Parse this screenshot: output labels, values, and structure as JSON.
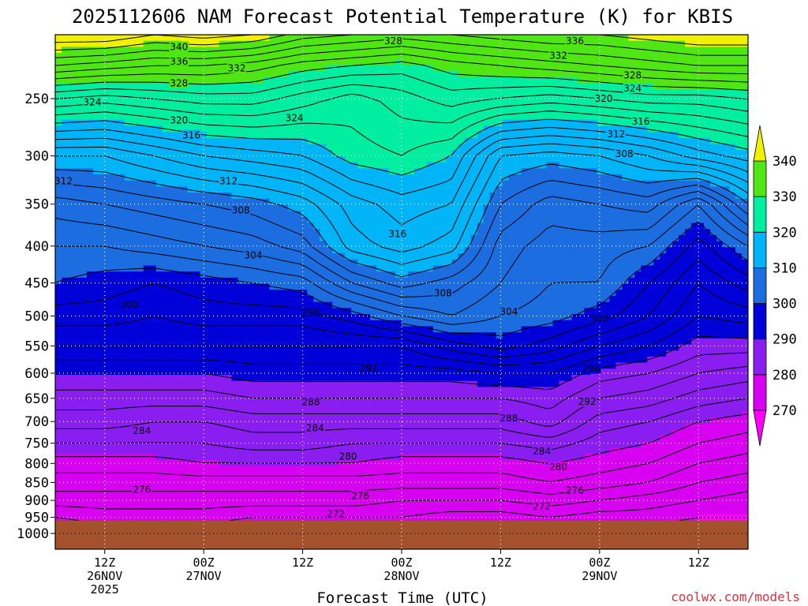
{
  "chart_data": {
    "type": "contour",
    "title": "2025112606 NAM Forecast Potential Temperature (K) for KBIS",
    "xlabel": "Forecast Time (UTC)",
    "ylabel": "",
    "credit": "coolwx.com/models",
    "y_axis": {
      "unit": "hPa",
      "range": [
        200,
        1020
      ],
      "ticks": [
        250,
        300,
        350,
        400,
        450,
        500,
        550,
        600,
        650,
        700,
        750,
        800,
        850,
        900,
        950,
        1000
      ],
      "tick_labels": [
        "250",
        "300",
        "350",
        "400",
        "450",
        "500",
        "550",
        "600",
        "650",
        "700",
        "750",
        "800",
        "850",
        "900",
        "950",
        "1000"
      ]
    },
    "x_axis": {
      "unit": "forecast hour",
      "range": [
        0,
        84
      ],
      "ticks": [
        {
          "hour": 6,
          "lines": [
            "12Z",
            "26NOV",
            "2025"
          ]
        },
        {
          "hour": 18,
          "lines": [
            "00Z",
            "27NOV"
          ]
        },
        {
          "hour": 30,
          "lines": [
            "12Z"
          ]
        },
        {
          "hour": 42,
          "lines": [
            "00Z",
            "28NOV"
          ]
        },
        {
          "hour": 54,
          "lines": [
            "12Z"
          ]
        },
        {
          "hour": 66,
          "lines": [
            "00Z",
            "29NOV"
          ]
        },
        {
          "hour": 78,
          "lines": [
            "12Z"
          ]
        }
      ]
    },
    "surface_pressure_hpa": 960,
    "colorbar": {
      "labels": [
        "270",
        "280",
        "290",
        "300",
        "310",
        "320",
        "330",
        "340"
      ],
      "bands": [
        {
          "min": 270,
          "max": 280,
          "color": "#d800f0"
        },
        {
          "min": 280,
          "max": 290,
          "color": "#8a1ef0"
        },
        {
          "min": 290,
          "max": 300,
          "color": "#0000d8"
        },
        {
          "min": 300,
          "max": 310,
          "color": "#1c6ee0"
        },
        {
          "min": 310,
          "max": 320,
          "color": "#00b4f8"
        },
        {
          "min": 320,
          "max": 330,
          "color": "#00eea0"
        },
        {
          "min": 330,
          "max": 340,
          "color": "#50e614"
        },
        {
          "min": 340,
          "max": 350,
          "color": "#f0f000"
        }
      ],
      "low_end_color": "#ff00ff",
      "high_end_color": "#f0f000"
    },
    "theta_field": {
      "description": "Potential temperature (K) at selected pressure levels vs forecast hour",
      "hours": [
        0,
        6,
        12,
        18,
        24,
        30,
        36,
        42,
        48,
        54,
        60,
        66,
        72,
        78,
        84
      ],
      "levels": [
        200,
        225,
        250,
        300,
        350,
        400,
        450,
        500,
        550,
        600,
        650,
        700,
        750,
        800,
        850,
        900,
        950
      ],
      "values": [
        [
          344,
          344,
          342,
          343,
          342,
          339,
          338,
          337,
          338,
          339,
          340,
          340,
          341,
          342,
          342
        ],
        [
          336,
          335,
          334,
          334,
          333,
          331,
          330,
          329,
          331,
          332,
          333,
          334,
          335,
          336,
          336
        ],
        [
          326,
          325,
          326,
          327,
          327,
          325,
          323,
          325,
          327,
          326,
          325,
          326,
          327,
          327,
          328
        ],
        [
          312,
          312,
          314,
          316,
          317,
          318,
          321,
          322,
          320,
          312,
          311,
          312,
          314,
          317,
          319
        ],
        [
          305,
          306,
          307,
          308,
          309,
          311,
          315,
          317,
          316,
          308,
          305,
          306,
          307,
          302,
          310
        ],
        [
          302,
          302,
          303,
          304,
          305,
          307,
          313,
          315,
          313,
          305,
          303,
          303,
          302,
          297,
          302
        ],
        [
          300,
          299,
          298,
          299,
          300,
          301,
          306,
          309,
          307,
          304,
          302,
          302,
          298,
          294,
          297
        ],
        [
          297,
          297,
          296,
          297,
          297,
          297,
          299,
          302,
          304,
          302,
          301,
          299,
          296,
          292,
          293
        ],
        [
          294,
          294,
          294,
          294,
          294,
          294,
          294,
          294,
          297,
          299,
          297,
          294,
          292,
          289,
          289
        ],
        [
          290,
          290,
          290,
          290,
          291,
          291,
          291,
          291,
          291,
          292,
          292,
          289,
          288,
          286,
          285
        ],
        [
          287,
          287,
          287,
          287,
          288,
          288,
          288,
          288,
          288,
          288,
          289,
          286,
          285,
          283,
          282
        ],
        [
          285,
          285,
          284,
          284,
          285,
          285,
          285,
          285,
          285,
          285,
          287,
          283,
          282,
          280,
          279
        ],
        [
          282,
          282,
          282,
          282,
          283,
          283,
          282,
          282,
          282,
          282,
          283,
          281,
          280,
          278,
          277
        ],
        [
          279,
          279,
          279,
          280,
          280,
          280,
          280,
          279,
          279,
          279,
          280,
          279,
          278,
          276,
          275
        ],
        [
          277,
          277,
          277,
          277,
          277,
          277,
          277,
          277,
          277,
          277,
          278,
          277,
          276,
          274,
          273
        ],
        [
          275,
          275,
          275,
          275,
          275,
          275,
          275,
          274,
          274,
          274,
          275,
          274,
          273,
          272,
          271
        ],
        [
          272,
          273,
          273,
          273,
          272,
          272,
          272,
          272,
          271,
          271,
          272,
          271,
          271,
          270,
          270
        ]
      ]
    },
    "contour_labels": [
      {
        "value": "340",
        "hour": 15,
        "p": 212
      },
      {
        "value": "336",
        "hour": 15,
        "p": 222
      },
      {
        "value": "332",
        "hour": 22,
        "p": 227
      },
      {
        "value": "328",
        "hour": 15,
        "p": 238
      },
      {
        "value": "324",
        "hour": 4.5,
        "p": 253
      },
      {
        "value": "320",
        "hour": 15,
        "p": 268
      },
      {
        "value": "316",
        "hour": 16.5,
        "p": 281
      },
      {
        "value": "312",
        "hour": 1,
        "p": 325
      },
      {
        "value": "312",
        "hour": 21,
        "p": 325
      },
      {
        "value": "308",
        "hour": 22.5,
        "p": 357
      },
      {
        "value": "304",
        "hour": 24,
        "p": 412
      },
      {
        "value": "300",
        "hour": 9,
        "p": 482
      },
      {
        "value": "296",
        "hour": 31,
        "p": 495
      },
      {
        "value": "292",
        "hour": 38,
        "p": 590
      },
      {
        "value": "288",
        "hour": 31,
        "p": 658
      },
      {
        "value": "284",
        "hour": 10.5,
        "p": 721
      },
      {
        "value": "284",
        "hour": 31.5,
        "p": 715
      },
      {
        "value": "280",
        "hour": 35.5,
        "p": 782
      },
      {
        "value": "276",
        "hour": 10.5,
        "p": 870
      },
      {
        "value": "276",
        "hour": 37,
        "p": 887
      },
      {
        "value": "272",
        "hour": 34,
        "p": 940
      },
      {
        "value": "328",
        "hour": 41,
        "p": 208
      },
      {
        "value": "324",
        "hour": 29,
        "p": 266
      },
      {
        "value": "316",
        "hour": 41.5,
        "p": 385
      },
      {
        "value": "308",
        "hour": 47,
        "p": 465
      },
      {
        "value": "304",
        "hour": 55,
        "p": 493
      },
      {
        "value": "300",
        "hour": 66,
        "p": 505
      },
      {
        "value": "296",
        "hour": 65,
        "p": 592
      },
      {
        "value": "292",
        "hour": 64.5,
        "p": 657
      },
      {
        "value": "288",
        "hour": 55,
        "p": 693
      },
      {
        "value": "284",
        "hour": 59,
        "p": 770
      },
      {
        "value": "280",
        "hour": 61,
        "p": 810
      },
      {
        "value": "276",
        "hour": 63,
        "p": 872
      },
      {
        "value": "272",
        "hour": 59,
        "p": 918
      },
      {
        "value": "336",
        "hour": 63,
        "p": 208
      },
      {
        "value": "332",
        "hour": 61,
        "p": 218
      },
      {
        "value": "328",
        "hour": 70,
        "p": 232
      },
      {
        "value": "324",
        "hour": 70,
        "p": 242
      },
      {
        "value": "320",
        "hour": 66.5,
        "p": 250
      },
      {
        "value": "316",
        "hour": 71,
        "p": 269
      },
      {
        "value": "312",
        "hour": 68,
        "p": 280
      },
      {
        "value": "308",
        "hour": 69,
        "p": 298
      }
    ]
  }
}
